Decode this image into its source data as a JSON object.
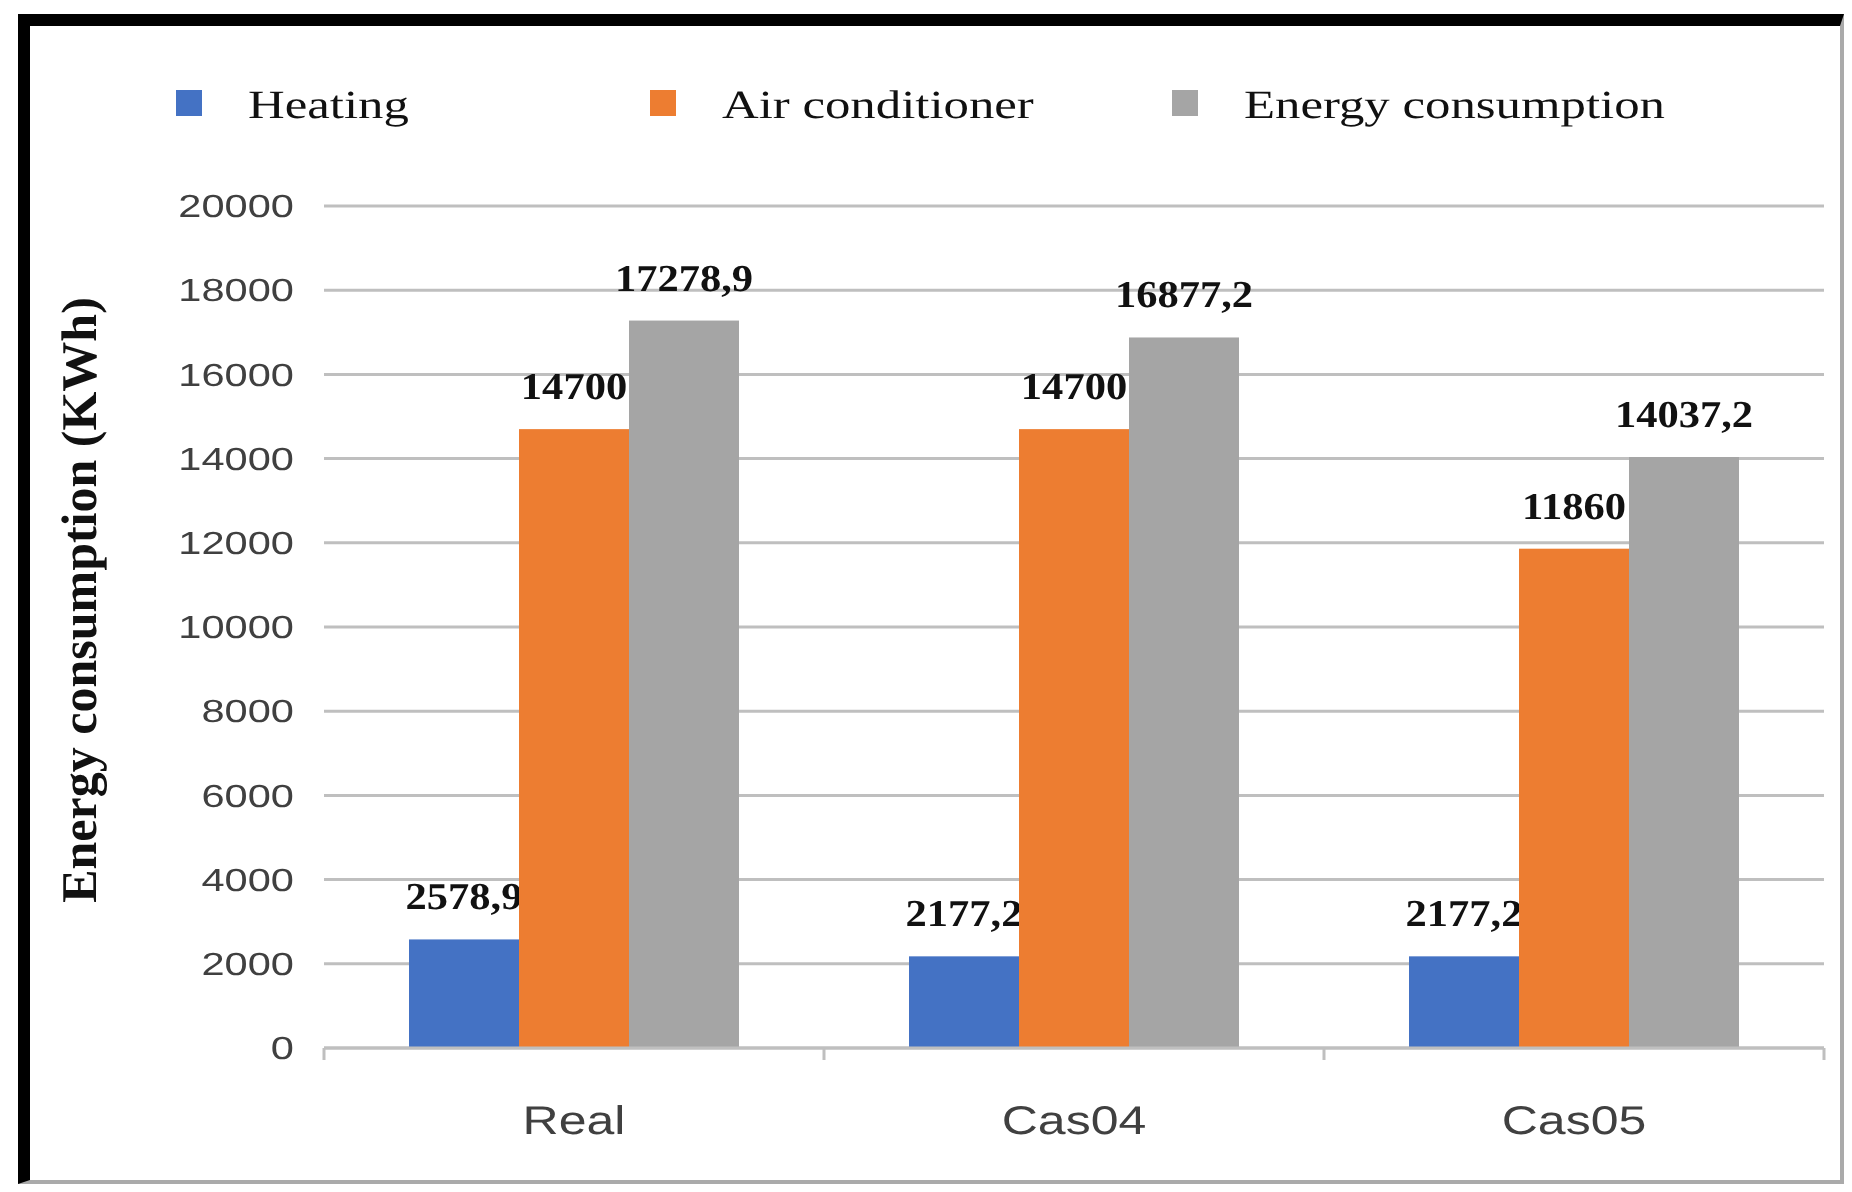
{
  "chart_data": {
    "type": "bar",
    "ylabel": "Energy consumption (KWh)",
    "categories": [
      "Real",
      "Cas04",
      "Cas05"
    ],
    "series": [
      {
        "name": "Heating",
        "color": "#4472c4",
        "values": [
          2578.9,
          2177.2,
          2177.2
        ],
        "value_labels": [
          "2578,9",
          "2177,2",
          "2177,2"
        ]
      },
      {
        "name": "Air conditioner",
        "color": "#ed7d31",
        "values": [
          14700,
          14700,
          11860
        ],
        "value_labels": [
          "14700",
          "14700",
          "11860"
        ]
      },
      {
        "name": "Energy consumption",
        "color": "#a5a5a5",
        "values": [
          17278.9,
          16877.2,
          14037.2
        ],
        "value_labels": [
          "17278,9",
          "16877,2",
          "14037,2"
        ]
      }
    ],
    "ylim": [
      0,
      20000
    ],
    "yticks": [
      0,
      2000,
      4000,
      6000,
      8000,
      10000,
      12000,
      14000,
      16000,
      18000,
      20000
    ],
    "grid": "y",
    "legend": "top"
  }
}
